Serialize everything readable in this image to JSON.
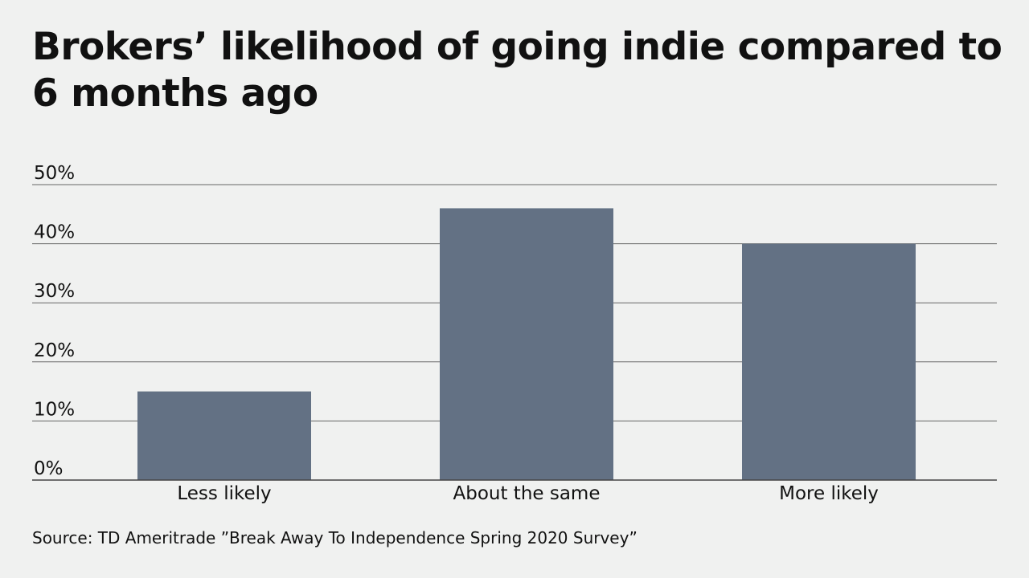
{
  "chart_data": {
    "type": "bar",
    "title": "Brokers’ likelihood of going indie compared to 6 months ago",
    "source": "Source: TD Ameritrade ”Break Away To Independence Spring 2020 Survey”",
    "categories": [
      "Less likely",
      "About the same",
      "More likely"
    ],
    "values": [
      15,
      46,
      40
    ],
    "color": "#637184",
    "ylim": [
      0,
      50
    ],
    "yticks": [
      {
        "value": 0,
        "label": "0%"
      },
      {
        "value": 10,
        "label": "10%"
      },
      {
        "value": 20,
        "label": "20%"
      },
      {
        "value": 30,
        "label": "30%"
      },
      {
        "value": 40,
        "label": "40%"
      },
      {
        "value": 50,
        "label": "50%"
      }
    ],
    "grid": true
  }
}
